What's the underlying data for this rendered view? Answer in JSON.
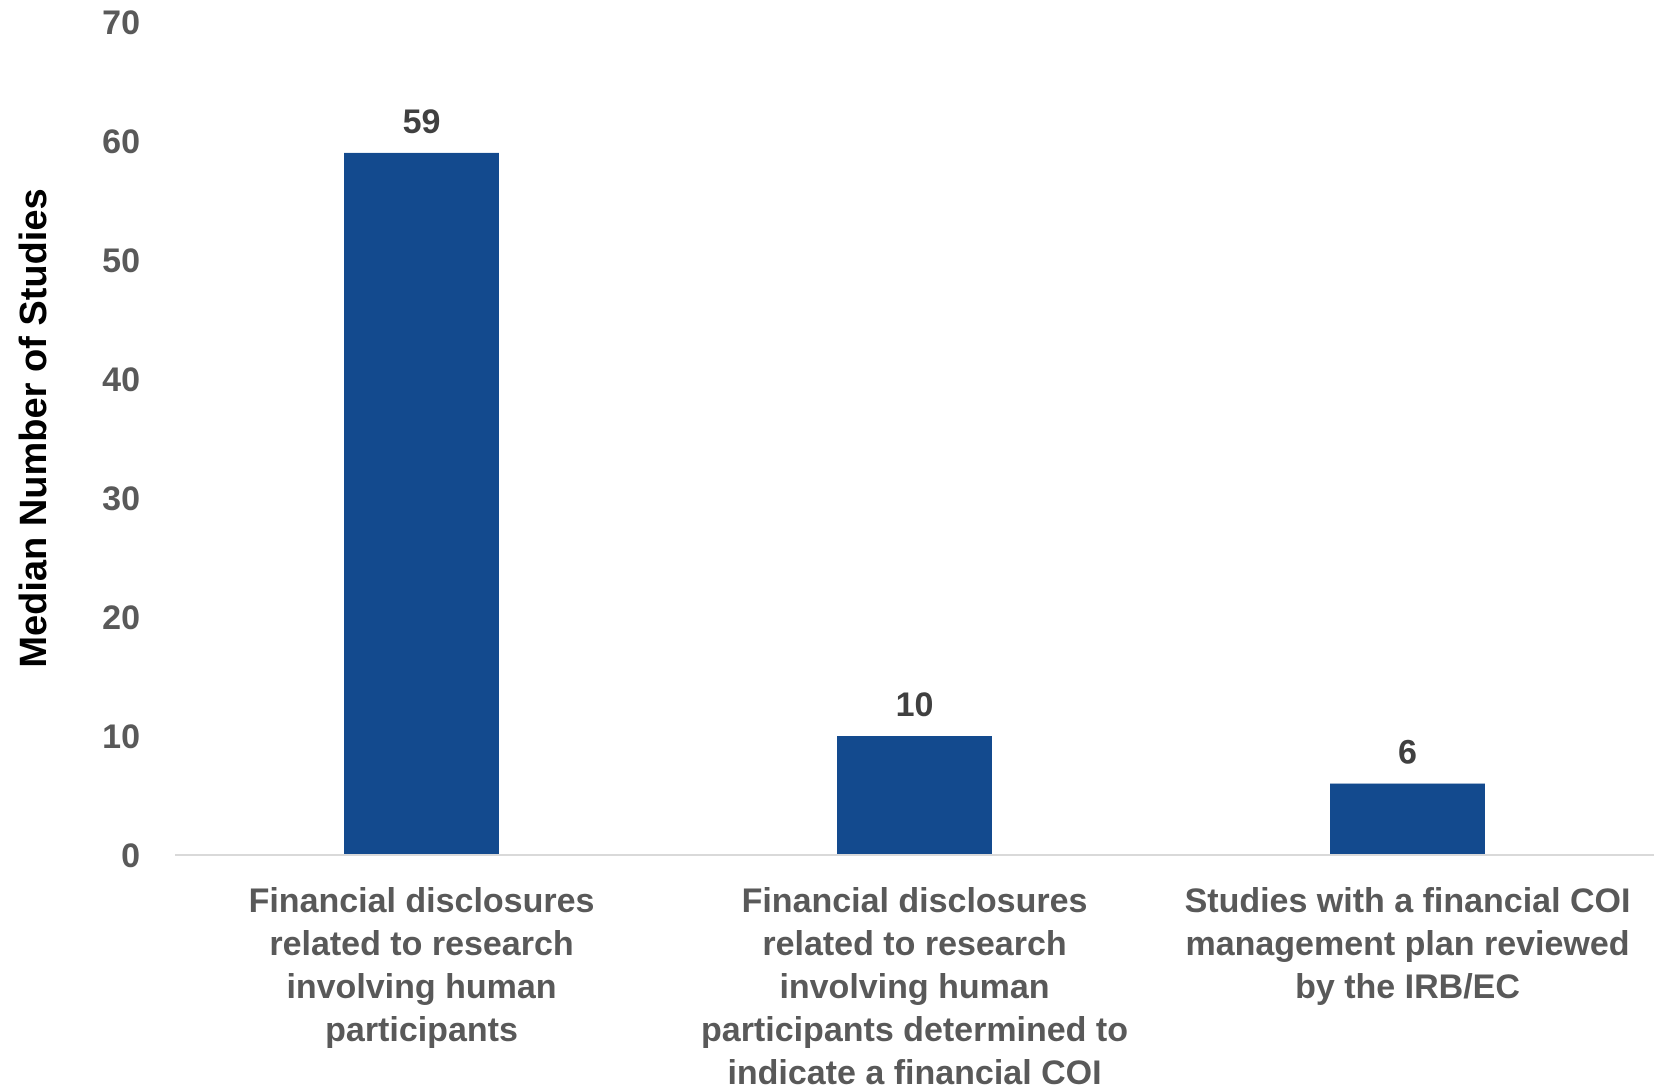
{
  "chart_data": {
    "type": "bar",
    "title": "",
    "xlabel": "",
    "ylabel": "Median Number of Studies",
    "ylim": [
      0,
      70
    ],
    "yticks": [
      0,
      10,
      20,
      30,
      40,
      50,
      60,
      70
    ],
    "grid": false,
    "legend": "none",
    "bar_color": "#134A8E",
    "categories": [
      [
        "Financial disclosures",
        "related to research",
        "involving human",
        "participants"
      ],
      [
        "Financial disclosures",
        "related to research",
        "involving human",
        "participants determined to",
        "indicate a financial COI"
      ],
      [
        "Studies with a financial COI",
        "management plan reviewed",
        "by the IRB/EC"
      ]
    ],
    "values": [
      59,
      10,
      6
    ],
    "data_labels": [
      "59",
      "10",
      "6"
    ]
  }
}
